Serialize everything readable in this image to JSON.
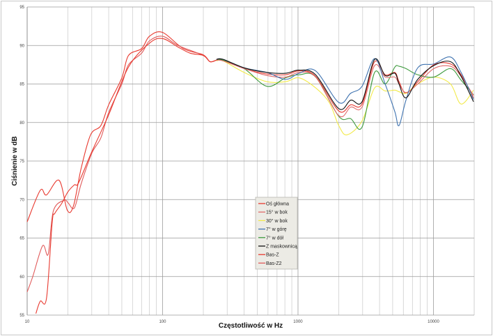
{
  "chart_data": {
    "type": "line",
    "title": "",
    "xlabel": "Częstotliwość w Hz",
    "ylabel": "Ciśnienie w dB",
    "xscale": "log",
    "xlim": [
      10,
      20000
    ],
    "ylim": [
      55,
      95
    ],
    "x_ticks": [
      "10",
      "100",
      "1000",
      "10000"
    ],
    "y_ticks": [
      "55",
      "60",
      "65",
      "70",
      "75",
      "80",
      "85",
      "90",
      "95"
    ],
    "grid": true,
    "legend_position": "center-bottom",
    "series": [
      {
        "name": "Oś główna",
        "color": "#e8392f",
        "x": [
          11.6,
          12.5,
          13.9,
          15.3,
          16,
          18,
          20,
          22.3,
          24,
          30,
          40,
          56,
          80,
          100,
          130,
          160,
          200,
          224,
          250,
          280,
          400,
          590,
          810,
          1020,
          1350,
          2000,
          2450,
          2970,
          3680,
          4400,
          5190,
          5570,
          6270,
          7660,
          10070,
          13370,
          16000,
          19770
        ],
        "y": [
          55.2,
          56.8,
          57.2,
          67,
          68.2,
          69.5,
          71,
          71.9,
          72.2,
          76.2,
          81,
          87.2,
          90.3,
          90.9,
          89.8,
          89,
          88.7,
          87.9,
          88.1,
          88.1,
          87.0,
          86.3,
          86.2,
          86.7,
          86.0,
          81.5,
          82.3,
          82.4,
          87.9,
          86.2,
          86.5,
          85.3,
          83.8,
          85.3,
          87.5,
          87.6,
          86.2,
          83.2
        ]
      },
      {
        "name": "15° w bok",
        "color": "#e06a6a",
        "x": [
          250,
          280,
          400,
          590,
          810,
          1020,
          1350,
          2000,
          2450,
          2970,
          3680,
          4400,
          5190,
          5570,
          6270,
          7660,
          10070,
          13370,
          16000,
          19770
        ],
        "y": [
          88.1,
          88.0,
          87.0,
          86.1,
          85.9,
          86.5,
          85.9,
          80.9,
          82.0,
          82.0,
          87.4,
          85.9,
          85.9,
          85.0,
          83.9,
          85.0,
          87.0,
          87.3,
          86.0,
          83.5
        ]
      },
      {
        "name": "30° w bok",
        "color": "#f2ea4a",
        "x": [
          250,
          280,
          400,
          590,
          810,
          1020,
          1350,
          1700,
          2000,
          2300,
          2970,
          3680,
          4400,
          5190,
          5570,
          6270,
          7660,
          10070,
          13370,
          16000,
          19770
        ],
        "y": [
          88.0,
          88.0,
          86.5,
          85.3,
          85.3,
          85.8,
          84.5,
          82.6,
          79.6,
          78.4,
          80.2,
          84.5,
          84.1,
          84.2,
          84.0,
          83.8,
          85.0,
          85.9,
          85.0,
          82.4,
          84.2
        ]
      },
      {
        "name": "7° w górę",
        "color": "#3f73b0",
        "x": [
          250,
          280,
          400,
          590,
          810,
          1020,
          1350,
          2000,
          2450,
          2970,
          3680,
          4400,
          5190,
          5570,
          6270,
          7660,
          10070,
          13370,
          16000,
          19770
        ],
        "y": [
          88.2,
          88.2,
          87.1,
          86.5,
          85.6,
          86.4,
          86.7,
          82.6,
          83.8,
          84.7,
          88.3,
          85.0,
          81.4,
          79.6,
          82.9,
          87.1,
          87.6,
          88.5,
          86.5,
          83.0
        ]
      },
      {
        "name": "7° w dół",
        "color": "#3e9a3e",
        "x": [
          250,
          280,
          400,
          590,
          810,
          1020,
          1350,
          2000,
          2450,
          2970,
          3680,
          4400,
          5190,
          5570,
          6270,
          7660,
          10070,
          13370,
          16000,
          19770
        ],
        "y": [
          88.1,
          88.1,
          87.0,
          84.7,
          85.8,
          86.2,
          85.9,
          80.8,
          80.5,
          79.4,
          86.5,
          85.0,
          87.2,
          87.3,
          87.0,
          86.2,
          85.9,
          87.0,
          85.5,
          83.6
        ]
      },
      {
        "name": "Z maskownicą",
        "color": "#111111",
        "x": [
          250,
          280,
          400,
          590,
          810,
          1020,
          1350,
          2000,
          2450,
          2970,
          3680,
          4400,
          5190,
          5570,
          6270,
          7660,
          10070,
          13370,
          16000,
          19770
        ],
        "y": [
          88.2,
          88.2,
          87.1,
          86.5,
          86.4,
          86.8,
          86.2,
          81.8,
          82.9,
          82.7,
          88.2,
          86.1,
          86.4,
          85.0,
          83.2,
          85.6,
          87.4,
          87.9,
          86.0,
          82.7
        ]
      },
      {
        "name": "Bas-Z",
        "color": "#e8392f",
        "x": [
          10,
          12.5,
          13.9,
          17.2,
          19.8,
          22,
          25,
          29.4,
          35,
          40,
          50,
          56,
          70,
          80,
          100,
          142,
          199,
          224,
          250
        ],
        "y": [
          67.1,
          71.2,
          70.6,
          72.5,
          68.6,
          69.2,
          74,
          78.4,
          79.6,
          82.3,
          85.8,
          88.7,
          89.6,
          91.2,
          91.7,
          89.6,
          88.8,
          87.9,
          88.1
        ]
      },
      {
        "name": "Bas-Z2",
        "color": "#e05a5a",
        "x": [
          10,
          11,
          13,
          14.3,
          15.6,
          18.7,
          20,
          22.3,
          25,
          30,
          35,
          40,
          50,
          56,
          70,
          80,
          100,
          130,
          200,
          224,
          250
        ],
        "y": [
          58,
          60,
          64,
          62.9,
          68.5,
          69.9,
          69.6,
          68.9,
          72,
          76,
          78,
          81.3,
          85,
          87.5,
          89,
          90.6,
          91.2,
          90.0,
          88.7,
          87.9,
          88.1
        ]
      }
    ]
  }
}
